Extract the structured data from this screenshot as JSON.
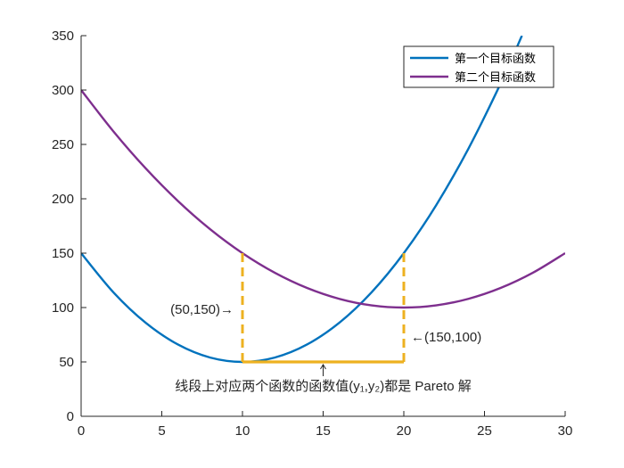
{
  "chart_data": {
    "type": "line",
    "title": "",
    "xlabel": "",
    "ylabel": "",
    "xlim": [
      0,
      30
    ],
    "ylim": [
      0,
      350
    ],
    "xticks": [
      0,
      5,
      10,
      15,
      20,
      25,
      30
    ],
    "yticks": [
      0,
      50,
      100,
      150,
      200,
      250,
      300,
      350
    ],
    "grid": false,
    "legend_position": "top-right",
    "series": [
      {
        "name": "第一个目标函数",
        "color": "#0072BD",
        "x": [
          0,
          2,
          4,
          6,
          8,
          10,
          12,
          14,
          16,
          18,
          20,
          22,
          24,
          26,
          27.32
        ],
        "y": [
          150,
          114,
          86,
          66,
          54,
          50,
          54,
          66,
          86,
          114,
          150,
          194,
          246,
          306,
          350
        ]
      },
      {
        "name": "第二个目标函数",
        "color": "#7E2F8E",
        "x": [
          0,
          2,
          4,
          6,
          8,
          10,
          12,
          14,
          16,
          18,
          20,
          22,
          24,
          26,
          28,
          30
        ],
        "y": [
          300,
          262,
          228,
          198,
          172,
          150,
          132,
          118,
          108,
          102,
          100,
          102,
          108,
          118,
          132,
          150
        ]
      }
    ],
    "highlight_color": "#EDB120",
    "pareto_segment": {
      "x": [
        10,
        20
      ],
      "y": [
        50,
        50
      ]
    },
    "pareto_bounds": [
      {
        "x": 10,
        "y_from": 50,
        "y_to": 150
      },
      {
        "x": 20,
        "y_from": 50,
        "y_to": 150
      }
    ],
    "annotations": [
      {
        "id": "left",
        "text": "(50,150)→",
        "x": 10,
        "y": 100
      },
      {
        "id": "right",
        "text": "←(150,100)",
        "x": 20,
        "y": 73
      },
      {
        "id": "bottom",
        "text": "线段上对应两个函数的函数值(y₁,y₂)都是 Pareto 解",
        "x": 15,
        "y": 28
      }
    ]
  }
}
